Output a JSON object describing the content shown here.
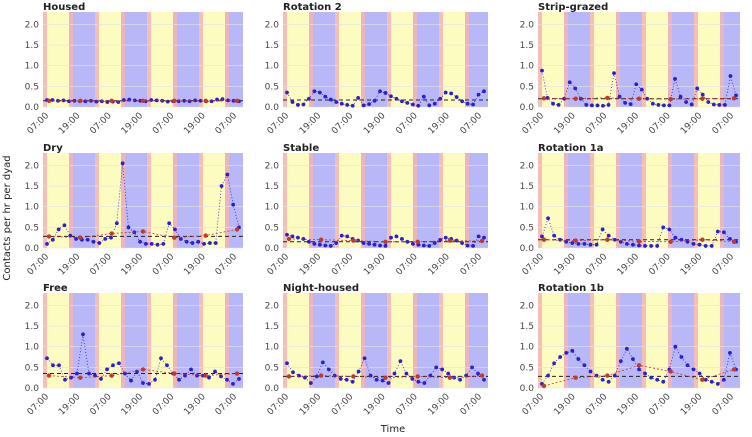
{
  "chart_data": {
    "type": "line",
    "xlabel": "Time",
    "ylabel": "Contacts per hr per dyad",
    "ylim": [
      0,
      2.3
    ],
    "yticks": [
      "0.0",
      "0.5",
      "1.0",
      "1.5",
      "2.0"
    ],
    "yticks_values": [
      0,
      0.5,
      1.0,
      1.5,
      2.0
    ],
    "colors": {
      "day": "#fcfcc0",
      "night": "#b8b8f8",
      "transition": "#f2b4b4",
      "observed": "#2c1fd0",
      "fitted": "#c0392b",
      "mean_line": "#222222",
      "grid": "#e2e2e2"
    },
    "panels": [
      {
        "title": "Housed",
        "ticks": [
          "07:00",
          "19:00",
          "07:00",
          "19:00",
          "07:00",
          "19:00",
          "07:00"
        ],
        "mean": 0.15,
        "observed": [
          0.17,
          0.17,
          0.15,
          0.16,
          0.14,
          0.15,
          0.14,
          0.14,
          0.15,
          0.13,
          0.14,
          0.12,
          0.13,
          0.12,
          0.17,
          0.18,
          0.16,
          0.15,
          0.14,
          0.17,
          0.16,
          0.15,
          0.13,
          0.14,
          0.14,
          0.15,
          0.14,
          0.16,
          0.15,
          0.14,
          0.14,
          0.18,
          0.19,
          0.16,
          0.15,
          0.14
        ],
        "fitted": [
          0.15,
          0.15,
          0.15,
          0.15,
          0.15,
          0.15,
          0.15
        ]
      },
      {
        "title": "Rotation 2",
        "ticks": [
          "07:00",
          "19:00",
          "07:00",
          "19:00",
          "07:00",
          "19:00",
          "07:00"
        ],
        "mean": 0.17,
        "observed": [
          0.35,
          0.12,
          0.05,
          0.06,
          0.2,
          0.38,
          0.35,
          0.25,
          0.18,
          0.12,
          0.08,
          0.05,
          0.03,
          0.22,
          0.04,
          0.07,
          0.15,
          0.38,
          0.34,
          0.26,
          0.2,
          0.14,
          0.1,
          0.06,
          0.03,
          0.25,
          0.04,
          0.08,
          0.2,
          0.35,
          0.33,
          0.24,
          0.14,
          0.08,
          0.06,
          0.3,
          0.38
        ],
        "fitted": []
      },
      {
        "title": "Strip-grazed",
        "ticks": [
          "07:00",
          "19:00",
          "07:00",
          "19:00",
          "07:00",
          "19:00",
          "07:00"
        ],
        "mean": 0.2,
        "observed": [
          0.88,
          0.22,
          0.08,
          0.05,
          0.2,
          0.6,
          0.45,
          0.2,
          0.05,
          0.04,
          0.04,
          0.03,
          0.05,
          0.82,
          0.25,
          0.1,
          0.07,
          0.55,
          0.42,
          0.2,
          0.08,
          0.05,
          0.04,
          0.04,
          0.68,
          0.25,
          0.12,
          0.06,
          0.45,
          0.3,
          0.12,
          0.06,
          0.05,
          0.05,
          0.75,
          0.28
        ],
        "fitted": [
          0.21,
          0.2,
          0.22,
          0.2,
          0.19,
          0.2,
          0.21
        ]
      },
      {
        "title": "Dry",
        "ticks": [
          "07:00",
          "19:00",
          "07:00",
          "19:00",
          "07:00",
          "19:00",
          "07:00"
        ],
        "mean": 0.28,
        "observed": [
          0.1,
          0.2,
          0.45,
          0.55,
          0.3,
          0.22,
          0.2,
          0.2,
          0.15,
          0.12,
          0.22,
          0.25,
          0.6,
          2.05,
          0.5,
          0.38,
          0.15,
          0.1,
          0.1,
          0.08,
          0.1,
          0.6,
          0.45,
          0.22,
          0.15,
          0.12,
          0.15,
          0.1,
          0.12,
          0.12,
          1.5,
          1.78,
          1.05,
          0.5
        ],
        "fitted": [
          0.28,
          0.25,
          0.35,
          0.4,
          0.25,
          0.3,
          0.45
        ]
      },
      {
        "title": "Stable",
        "ticks": [
          "07:00",
          "19:00",
          "07:00",
          "19:00",
          "07:00",
          "19:00",
          "07:00"
        ],
        "mean": 0.15,
        "observed": [
          0.32,
          0.28,
          0.25,
          0.22,
          0.15,
          0.1,
          0.08,
          0.06,
          0.05,
          0.12,
          0.3,
          0.28,
          0.22,
          0.18,
          0.12,
          0.1,
          0.08,
          0.06,
          0.05,
          0.25,
          0.28,
          0.22,
          0.15,
          0.1,
          0.08,
          0.06,
          0.05,
          0.12,
          0.2,
          0.25,
          0.22,
          0.18,
          0.12,
          0.06,
          0.05,
          0.28,
          0.25
        ],
        "fitted": [
          0.22,
          0.2,
          0.18,
          0.15,
          0.15,
          0.18,
          0.17
        ]
      },
      {
        "title": "Rotation 1a",
        "ticks": [
          "07:00",
          "19:00",
          "07:00",
          "19:00",
          "07:00",
          "19:00",
          "07:00"
        ],
        "mean": 0.2,
        "observed": [
          0.28,
          0.72,
          0.3,
          0.2,
          0.15,
          0.12,
          0.1,
          0.1,
          0.08,
          0.08,
          0.45,
          0.3,
          0.2,
          0.15,
          0.1,
          0.08,
          0.06,
          0.05,
          0.05,
          0.05,
          0.5,
          0.45,
          0.25,
          0.2,
          0.15,
          0.1,
          0.08,
          0.05,
          0.05,
          0.4,
          0.38,
          0.22,
          0.15
        ],
        "fitted": [
          0.2,
          0.18,
          0.2,
          0.16,
          0.15,
          0.2,
          0.15
        ]
      },
      {
        "title": "Free",
        "ticks": [
          "07:00",
          "19:00",
          "07:00",
          "19:00",
          "07:00",
          "19:00",
          "07:00"
        ],
        "mean": 0.35,
        "observed": [
          0.72,
          0.55,
          0.55,
          0.2,
          0.25,
          0.35,
          1.3,
          0.35,
          0.3,
          0.22,
          0.45,
          0.55,
          0.6,
          0.35,
          0.18,
          0.4,
          0.12,
          0.1,
          0.2,
          0.72,
          0.55,
          0.35,
          0.2,
          0.3,
          0.45,
          0.3,
          0.3,
          0.25,
          0.4,
          0.28,
          0.2,
          0.1,
          0.22
        ],
        "fitted": [
          0.3,
          0.25,
          0.3,
          0.45,
          0.35,
          0.3,
          0.35
        ]
      },
      {
        "title": "Night-housed",
        "ticks": [
          "07:00",
          "19:00",
          "07:00",
          "19:00",
          "07:00",
          "19:00",
          "07:00"
        ],
        "mean": 0.28,
        "observed": [
          0.6,
          0.38,
          0.3,
          0.25,
          0.12,
          0.28,
          0.62,
          0.45,
          0.3,
          0.22,
          0.2,
          0.15,
          0.4,
          0.72,
          0.3,
          0.2,
          0.18,
          0.12,
          0.35,
          0.65,
          0.35,
          0.22,
          0.15,
          0.12,
          0.3,
          0.5,
          0.45,
          0.35,
          0.25,
          0.2,
          0.3,
          0.5,
          0.35,
          0.2
        ],
        "fitted": [
          0.28,
          0.3,
          0.28,
          0.25,
          0.28,
          0.25,
          0.3
        ]
      },
      {
        "title": "Rotation 1b",
        "ticks": [
          "07:00",
          "19:00",
          "07:00",
          "19:00",
          "07:00",
          "19:00",
          "07:00"
        ],
        "mean": 0.28,
        "observed": [
          0.1,
          0.3,
          0.6,
          0.75,
          0.85,
          0.9,
          0.7,
          0.55,
          0.4,
          0.3,
          0.2,
          0.15,
          0.3,
          0.65,
          0.95,
          0.7,
          0.45,
          0.35,
          0.25,
          0.2,
          0.15,
          0.45,
          1.0,
          0.75,
          0.55,
          0.45,
          0.35,
          0.2,
          0.15,
          0.1,
          0.2,
          0.85,
          0.45
        ],
        "fitted": [
          0.05,
          0.25,
          0.3,
          0.55,
          0.4,
          0.2,
          0.45
        ]
      }
    ]
  }
}
